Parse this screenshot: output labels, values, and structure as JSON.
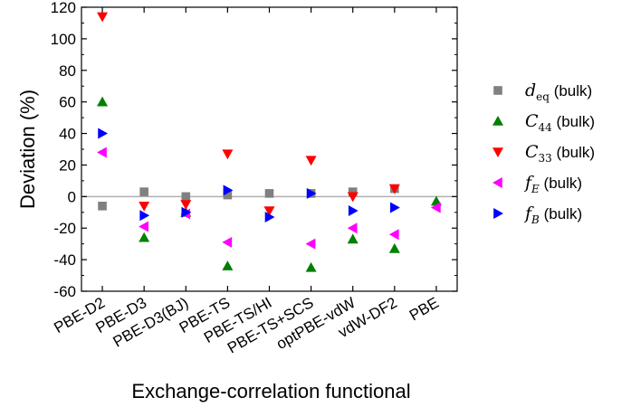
{
  "chart_data": {
    "type": "scatter",
    "title": "",
    "xlabel": "Exchange-correlation functional",
    "ylabel": "Deviation (%)",
    "categories": [
      "PBE-D2",
      "PBE-D3",
      "PBE-D3(BJ)",
      "PBE-TS",
      "PBE-TS/HI",
      "PBE-TS+SCS",
      "optPBE-vdW",
      "vdW-DF2",
      "PBE"
    ],
    "ylim": [
      -60,
      120
    ],
    "yticks": [
      "-60",
      "-40",
      "-20",
      "0",
      "20",
      "40",
      "60",
      "80",
      "100",
      "120"
    ],
    "legend_position": "right",
    "reference_line_y": 0,
    "series": [
      {
        "name_main": "d",
        "name_sub": "eq",
        "name_suffix": "(bulk)",
        "marker": "square",
        "color": "#808080",
        "values": [
          -6,
          3,
          0,
          1,
          2,
          2,
          3,
          5,
          null
        ]
      },
      {
        "name_main": "C",
        "name_sub": "44",
        "name_suffix": "(bulk)",
        "marker": "triangle-up",
        "color": "#008000",
        "values": [
          60,
          -26,
          -10,
          -44,
          null,
          -45,
          -27,
          -33,
          -3
        ]
      },
      {
        "name_main": "C",
        "name_sub": "33",
        "name_suffix": "(bulk)",
        "marker": "triangle-down",
        "color": "#ff0000",
        "values": [
          114,
          -6,
          -5,
          27,
          -9,
          23,
          0,
          5,
          null
        ]
      },
      {
        "name_main": "f",
        "name_sub": "E",
        "name_suffix": "(bulk)",
        "marker": "triangle-left",
        "color": "#ff00ff",
        "values": [
          28,
          -19,
          -11,
          -29,
          null,
          -30,
          -20,
          -24,
          -7
        ]
      },
      {
        "name_main": "f",
        "name_sub": "B",
        "name_suffix": "(bulk)",
        "marker": "triangle-right",
        "color": "#0000ff",
        "values": [
          40,
          -12,
          -10,
          4,
          -13,
          2,
          -9,
          -7,
          null
        ]
      }
    ]
  }
}
